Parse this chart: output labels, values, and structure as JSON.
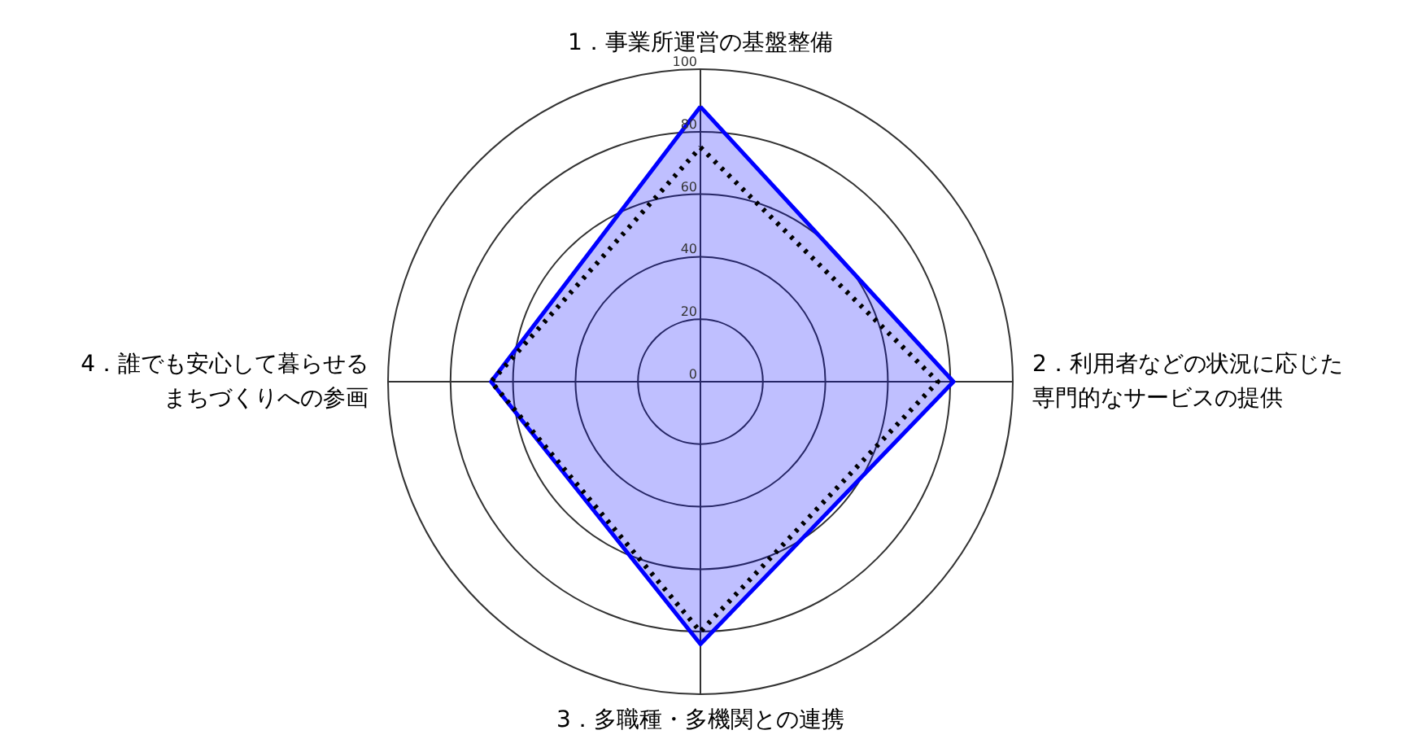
{
  "chart_data": {
    "type": "radar",
    "categories": [
      "1．事業所運営の基盤整備",
      "2．利用者などの状況に応じた専門的なサービスの提供",
      "3．多職種・多機関との連携",
      "4．誰でも安心して暮らせるまちづくりへの参画"
    ],
    "ylim": [
      0,
      100
    ],
    "yticks": [
      0,
      20,
      40,
      60,
      80,
      100
    ],
    "series": [
      {
        "color": "#0000ff",
        "type": "area",
        "line_style": "solid",
        "values": [
          88,
          81,
          84,
          67
        ]
      },
      {
        "color": "#000000",
        "line_style": "dotted",
        "values": [
          75,
          76,
          80,
          67
        ]
      }
    ]
  }
}
